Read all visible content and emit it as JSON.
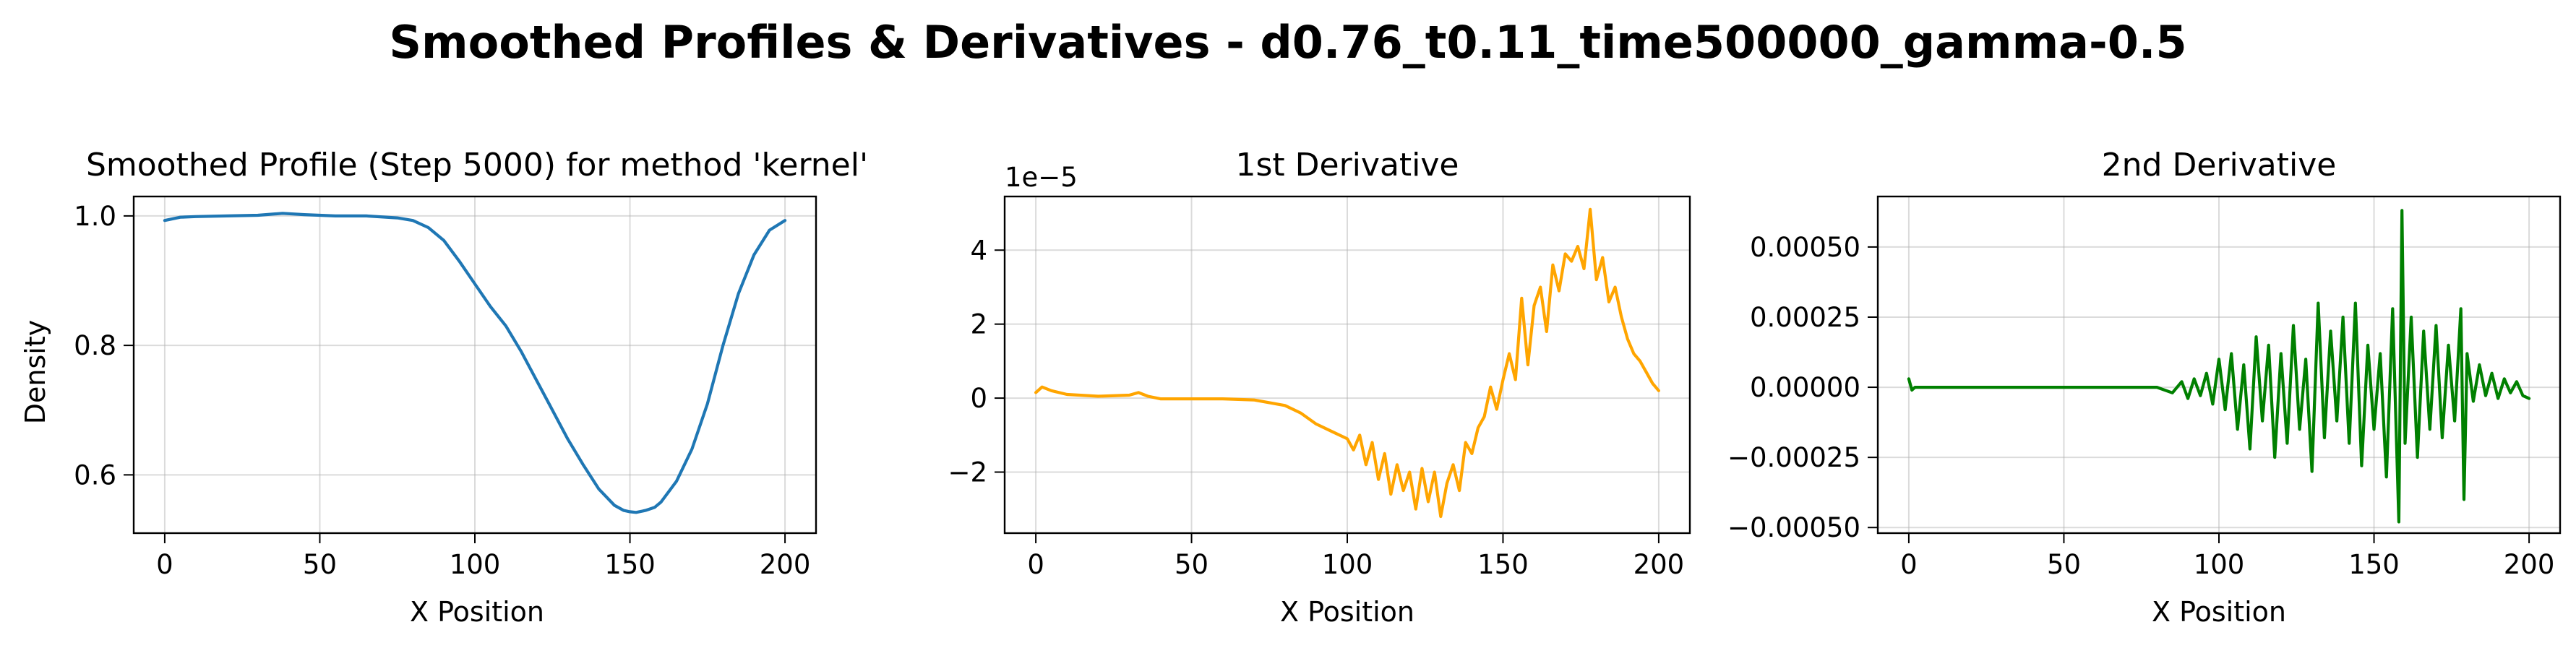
{
  "suptitle": "Smoothed Profiles & Derivatives - d0.76_t0.11_time500000_gamma-0.5",
  "chart_data": [
    {
      "type": "line",
      "title": "Smoothed Profile (Step 5000) for method 'kernel'",
      "xlabel": "X Position",
      "ylabel": "Density",
      "xlim": [
        -10,
        210
      ],
      "ylim": [
        0.51,
        1.03
      ],
      "xticks": [
        0,
        50,
        100,
        150,
        200
      ],
      "xtick_labels": [
        "0",
        "50",
        "100",
        "150",
        "200"
      ],
      "yticks": [
        0.6,
        0.8,
        1.0
      ],
      "ytick_labels": [
        "0.6",
        "0.8",
        "1.0"
      ],
      "offset_text": "",
      "grid": true,
      "color": "#1f77b4",
      "series": [
        {
          "x": [
            0,
            5,
            10,
            20,
            30,
            38,
            45,
            55,
            65,
            75,
            80,
            85,
            90,
            95,
            100,
            105,
            110,
            115,
            120,
            125,
            130,
            135,
            140,
            145,
            148,
            150,
            152,
            155,
            158,
            160,
            165,
            170,
            175,
            180,
            185,
            190,
            195,
            200
          ],
          "y": [
            0.993,
            0.998,
            0.999,
            1.0,
            1.001,
            1.004,
            1.002,
            1.0,
            1.0,
            0.997,
            0.993,
            0.982,
            0.962,
            0.93,
            0.895,
            0.86,
            0.83,
            0.79,
            0.745,
            0.7,
            0.655,
            0.615,
            0.578,
            0.553,
            0.545,
            0.543,
            0.542,
            0.545,
            0.55,
            0.558,
            0.59,
            0.64,
            0.71,
            0.8,
            0.88,
            0.94,
            0.978,
            0.993
          ]
        }
      ]
    },
    {
      "type": "line",
      "title": "1st Derivative",
      "xlabel": "X Position",
      "ylabel": "",
      "xlim": [
        -10,
        210
      ],
      "ylim": [
        -3.65,
        5.45
      ],
      "xticks": [
        0,
        50,
        100,
        150,
        200
      ],
      "xtick_labels": [
        "0",
        "50",
        "100",
        "150",
        "200"
      ],
      "yticks": [
        -2,
        0,
        2,
        4
      ],
      "ytick_labels": [
        "−2",
        "0",
        "2",
        "4"
      ],
      "offset_text": "1e−5",
      "grid": true,
      "color": "#ffa500",
      "series": [
        {
          "x": [
            0,
            2,
            5,
            10,
            20,
            30,
            33,
            36,
            40,
            50,
            60,
            70,
            80,
            85,
            90,
            95,
            100,
            102,
            104,
            106,
            108,
            110,
            112,
            114,
            116,
            118,
            120,
            122,
            124,
            126,
            128,
            130,
            132,
            134,
            136,
            138,
            140,
            142,
            144,
            146,
            148,
            150,
            152,
            154,
            156,
            158,
            160,
            162,
            164,
            166,
            168,
            170,
            172,
            174,
            176,
            178,
            180,
            182,
            184,
            186,
            188,
            190,
            192,
            194,
            196,
            198,
            200
          ],
          "y": [
            0.15,
            0.3,
            0.2,
            0.1,
            0.05,
            0.08,
            0.15,
            0.05,
            -0.02,
            -0.02,
            -0.02,
            -0.05,
            -0.2,
            -0.4,
            -0.7,
            -0.9,
            -1.1,
            -1.4,
            -1.0,
            -1.8,
            -1.2,
            -2.2,
            -1.5,
            -2.6,
            -1.8,
            -2.5,
            -2.0,
            -3.0,
            -1.9,
            -2.8,
            -2.0,
            -3.2,
            -2.3,
            -1.8,
            -2.5,
            -1.2,
            -1.5,
            -0.8,
            -0.5,
            0.3,
            -0.3,
            0.5,
            1.2,
            0.5,
            2.7,
            0.9,
            2.5,
            3.0,
            1.8,
            3.6,
            2.9,
            3.9,
            3.7,
            4.1,
            3.5,
            5.1,
            3.2,
            3.8,
            2.6,
            3.0,
            2.2,
            1.6,
            1.2,
            1.0,
            0.7,
            0.4,
            0.2
          ]
        }
      ]
    },
    {
      "type": "line",
      "title": "2nd Derivative",
      "xlabel": "X Position",
      "ylabel": "",
      "xlim": [
        -10,
        210
      ],
      "ylim": [
        -0.00052,
        0.00068
      ],
      "xticks": [
        0,
        50,
        100,
        150,
        200
      ],
      "xtick_labels": [
        "0",
        "50",
        "100",
        "150",
        "200"
      ],
      "yticks": [
        -0.0005,
        -0.00025,
        0.0,
        0.00025,
        0.0005
      ],
      "ytick_labels": [
        "−0.00050",
        "−0.00025",
        "0.00000",
        "0.00025",
        "0.00050"
      ],
      "offset_text": "",
      "grid": true,
      "color": "#008000",
      "series": [
        {
          "x": [
            0,
            1,
            2,
            5,
            10,
            20,
            30,
            40,
            50,
            60,
            70,
            80,
            85,
            88,
            90,
            92,
            94,
            96,
            98,
            100,
            102,
            104,
            106,
            108,
            110,
            112,
            114,
            116,
            118,
            120,
            122,
            124,
            126,
            128,
            130,
            132,
            134,
            136,
            138,
            140,
            142,
            144,
            146,
            148,
            150,
            152,
            154,
            156,
            158,
            159,
            160,
            162,
            164,
            166,
            168,
            170,
            172,
            174,
            176,
            178,
            179,
            180,
            182,
            184,
            186,
            188,
            190,
            192,
            194,
            196,
            198,
            200
          ],
          "y": [
            3e-05,
            -1e-05,
            0.0,
            0.0,
            0.0,
            0.0,
            0.0,
            0.0,
            0.0,
            0.0,
            0.0,
            0.0,
            -2e-05,
            2e-05,
            -4e-05,
            3e-05,
            -3e-05,
            5e-05,
            -6e-05,
            0.0001,
            -8e-05,
            0.00012,
            -0.00015,
            8e-05,
            -0.00022,
            0.00018,
            -0.00012,
            0.00015,
            -0.00025,
            0.00012,
            -0.0002,
            0.00022,
            -0.00015,
            0.0001,
            -0.0003,
            0.0003,
            -0.00018,
            0.0002,
            -0.00012,
            0.00025,
            -0.0002,
            0.0003,
            -0.00028,
            0.00015,
            -0.00015,
            0.00012,
            -0.00032,
            0.00028,
            -0.00048,
            0.00063,
            -0.0002,
            0.00025,
            -0.00025,
            0.0002,
            -0.00015,
            0.00022,
            -0.00018,
            0.00015,
            -0.00012,
            0.00028,
            -0.0004,
            0.00012,
            -5e-05,
            8e-05,
            -3e-05,
            5e-05,
            -4e-05,
            3e-05,
            -2e-05,
            2e-05,
            -3e-05,
            -4e-05
          ]
        }
      ]
    }
  ]
}
